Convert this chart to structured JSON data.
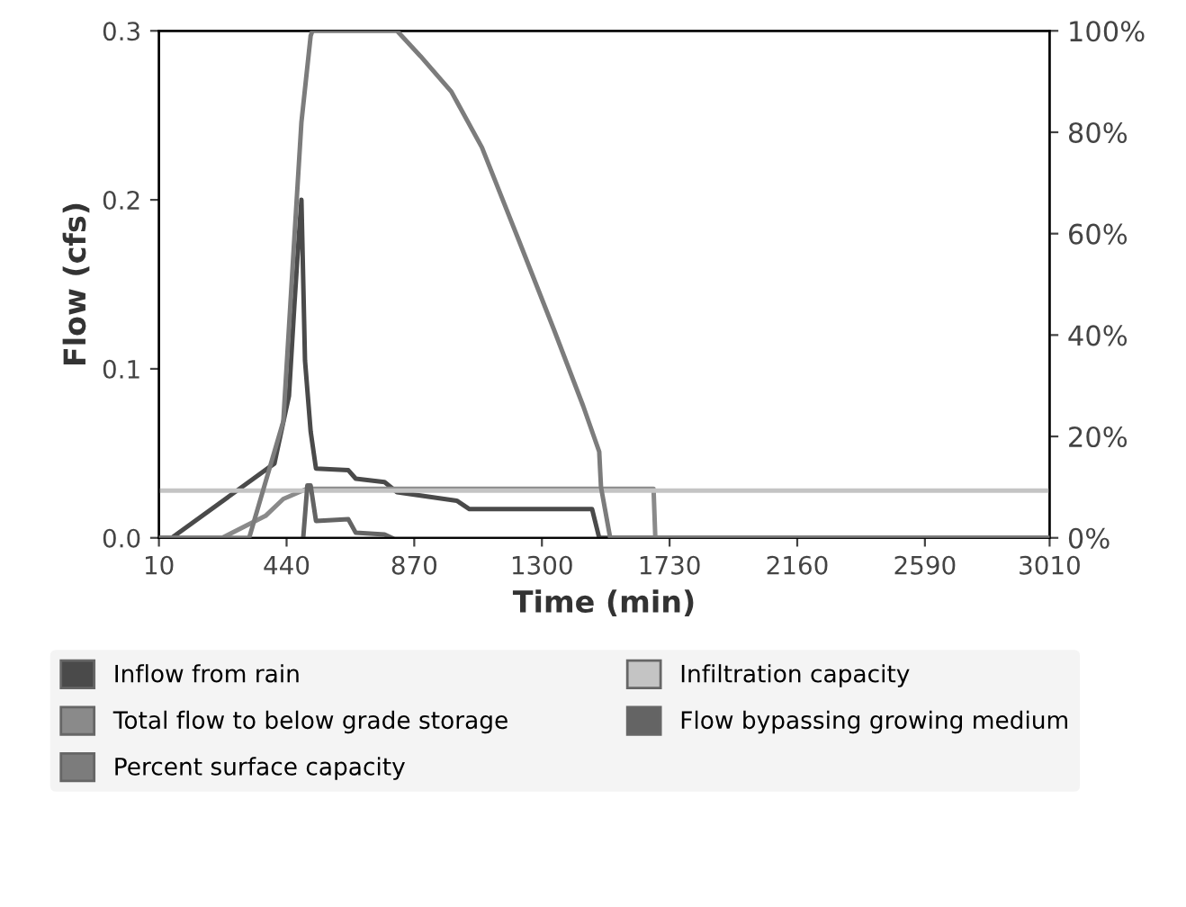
{
  "chart_data": {
    "type": "line",
    "xlabel": "Time (min)",
    "ylabel": "Flow (cfs)",
    "xlim": [
      10,
      3010
    ],
    "xticks": [
      10,
      440,
      870,
      1300,
      1730,
      2160,
      2590,
      3010
    ],
    "ylim": [
      0,
      0.3
    ],
    "yticks": [
      {
        "value": 0,
        "label": "0.0"
      },
      {
        "value": 0.1,
        "label": "0.1"
      },
      {
        "value": 0.2,
        "label": "0.2"
      },
      {
        "value": 0.3,
        "label": "0.3"
      }
    ],
    "y2lim": [
      0,
      100
    ],
    "y2ticks": [
      {
        "value": 0,
        "label": "0%"
      },
      {
        "value": 20,
        "label": "20%"
      },
      {
        "value": 40,
        "label": "40%"
      },
      {
        "value": 60,
        "label": "60%"
      },
      {
        "value": 80,
        "label": "80%"
      },
      {
        "value": 100,
        "label": "100%"
      }
    ],
    "legend": "bottom",
    "grid": false,
    "marker": "none",
    "line_style": "solid",
    "series": [
      {
        "name": "Inflow from rain",
        "color": "#4a4a4a",
        "x": [
          10,
          53,
          399,
          448,
          466,
          478,
          490,
          502,
          521,
          539,
          648,
          673,
          770,
          812,
          1013,
          1056,
          1469,
          1493,
          3010
        ],
        "values": [
          0,
          0,
          0.044,
          0.084,
          0.137,
          0.17,
          0.2,
          0.105,
          0.063,
          0.041,
          0.04,
          0.035,
          0.033,
          0.027,
          0.022,
          0.017,
          0.017,
          0,
          0
        ]
      },
      {
        "name": "Total flow to below grade storage",
        "color": "#8a8a8a",
        "x": [
          10,
          223,
          369,
          429,
          508,
          1676,
          1682,
          3010
        ],
        "values": [
          0,
          0,
          0.013,
          0.023,
          0.029,
          0.029,
          0,
          0
        ]
      },
      {
        "name": "Percent surface capacity",
        "color": "#7c7c7c",
        "axis": "y2",
        "x": [
          10,
          314,
          429,
          466,
          490,
          521,
          527,
          812,
          891,
          995,
          1098,
          1220,
          1341,
          1439,
          1493,
          1499,
          1530,
          3010
        ],
        "values": [
          0,
          0,
          23,
          59,
          82,
          99,
          100,
          100,
          95,
          88,
          77,
          59,
          41,
          26,
          17,
          10,
          0,
          0
        ]
      },
      {
        "name": "Infiltration capacity",
        "color": "#c4c4c4",
        "x": [
          10,
          3010
        ],
        "values": [
          0.028,
          0.028
        ]
      },
      {
        "name": "Flow bypassing growing medium",
        "color": "#646464",
        "x": [
          496,
          510,
          521,
          539,
          648,
          673,
          770,
          794
        ],
        "values": [
          0,
          0.031,
          0.031,
          0.01,
          0.011,
          0.003,
          0.002,
          0
        ]
      }
    ]
  }
}
